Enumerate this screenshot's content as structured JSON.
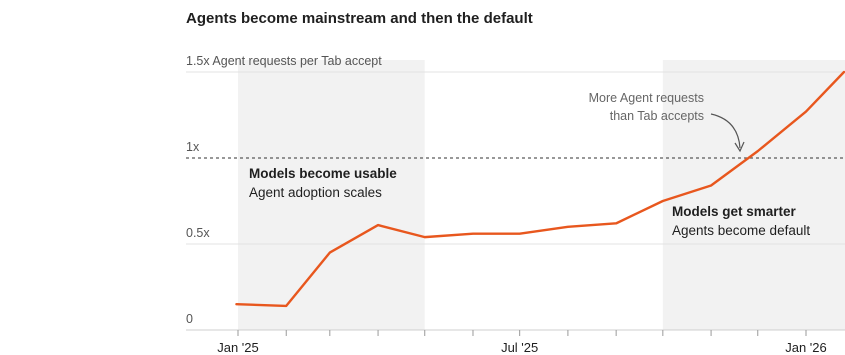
{
  "chart_data": {
    "type": "line",
    "title": "Agents become mainstream and then the default",
    "ylabel": "1.5x Agent requests per Tab accept",
    "ylim": [
      0,
      1.5
    ],
    "yticks": [
      {
        "value": 0,
        "label": "0"
      },
      {
        "value": 0.5,
        "label": "0.5x"
      },
      {
        "value": 1,
        "label": "1x"
      },
      {
        "value": 1.5,
        "label": "1.5x Agent requests per Tab accept"
      }
    ],
    "xticks": [
      {
        "value": "2025-01-01",
        "label": "Jan '25"
      },
      {
        "value": "2025-07-01",
        "label": "Jul '25"
      },
      {
        "value": "2026-01-01",
        "label": "Jan '26"
      }
    ],
    "xlim": [
      "2025-01-01",
      "2026-02-01"
    ],
    "reference_line": {
      "value": 1,
      "style": "dashed"
    },
    "series": [
      {
        "color": "#e8571e",
        "points": [
          {
            "x": "2024-12-31",
            "y": 0.15
          },
          {
            "x": "2025-02-01",
            "y": 0.14
          },
          {
            "x": "2025-03-01",
            "y": 0.45
          },
          {
            "x": "2025-04-01",
            "y": 0.61
          },
          {
            "x": "2025-05-01",
            "y": 0.54
          },
          {
            "x": "2025-06-01",
            "y": 0.56
          },
          {
            "x": "2025-07-01",
            "y": 0.56
          },
          {
            "x": "2025-08-01",
            "y": 0.6
          },
          {
            "x": "2025-09-01",
            "y": 0.62
          },
          {
            "x": "2025-10-01",
            "y": 0.75
          },
          {
            "x": "2025-11-01",
            "y": 0.84
          },
          {
            "x": "2025-12-01",
            "y": 1.04
          },
          {
            "x": "2026-01-01",
            "y": 1.27
          },
          {
            "x": "2026-02-01",
            "y": 1.5
          }
        ]
      }
    ],
    "shaded_periods": [
      {
        "start": "2025-01-01",
        "end": "2025-05-01"
      },
      {
        "start": "2025-10-01",
        "end": "2026-02-01"
      }
    ],
    "annotations": [
      {
        "bold": "Models become usable",
        "text": "Agent adoption scales"
      },
      {
        "bold": "Models get smarter",
        "text": "Agents become default"
      },
      {
        "line1": "More Agent requests",
        "line2": "than Tab accepts"
      }
    ],
    "grid": true,
    "colors": {
      "line": "#e8571e",
      "shade": "#f2f2f2",
      "grid": "#e3e3e3",
      "dashed": "#5a5a5a"
    }
  }
}
